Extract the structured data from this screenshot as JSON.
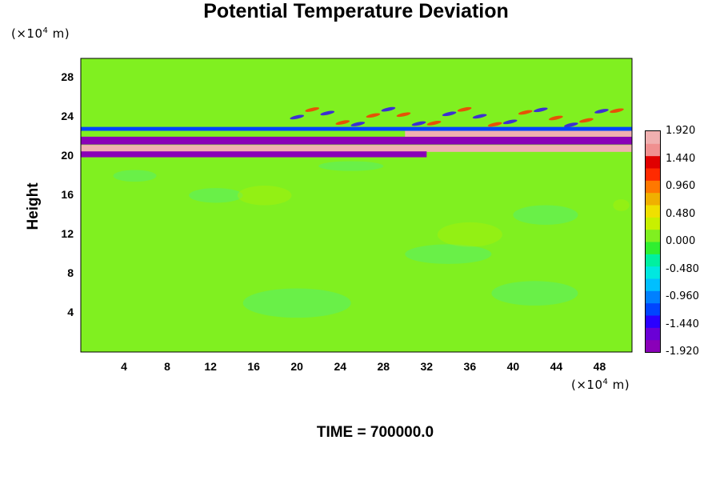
{
  "chart_data": {
    "type": "heatmap",
    "title": "Potential Temperature Deviation",
    "ylabel": "Height",
    "y_unit": "(×10",
    "x_unit": "(×10",
    "unit_exponent": "4",
    "unit_suffix": " m)",
    "x_ticks": [
      "4",
      "8",
      "12",
      "16",
      "20",
      "24",
      "28",
      "32",
      "36",
      "40",
      "44",
      "48"
    ],
    "y_ticks": [
      "4",
      "8",
      "12",
      "16",
      "20",
      "24",
      "28"
    ],
    "xlim": [
      0,
      51
    ],
    "ylim": [
      0,
      30
    ],
    "colorbar_ticks": [
      "1.920",
      "1.440",
      "0.960",
      "0.480",
      "0.000",
      "-0.480",
      "-0.960",
      "-1.440",
      "-1.920"
    ],
    "colorbar_range": [
      -1.92,
      1.92
    ],
    "background_value": 0.12,
    "features": [
      {
        "label": "strong positive layer",
        "x_start": 0,
        "x_end": 51,
        "y": 20.8,
        "thickness": 0.7,
        "value": 1.95
      },
      {
        "label": "strong negative layer upper",
        "x_start": 0,
        "x_end": 51,
        "y": 21.6,
        "thickness": 0.8,
        "value": -1.92
      },
      {
        "label": "strong negative layer lower",
        "x_start": 0,
        "x_end": 32,
        "y": 20.2,
        "thickness": 0.6,
        "value": -1.92
      },
      {
        "label": "positive layer upper",
        "x_start": 30,
        "x_end": 51,
        "y": 22.3,
        "thickness": 0.6,
        "value": 1.95
      },
      {
        "label": "negative band top",
        "x_start": 0,
        "x_end": 51,
        "y": 22.8,
        "thickness": 0.4,
        "value": -1.2
      },
      {
        "label": "wave packet",
        "x_start": 20,
        "x_end": 51,
        "y": 24.0,
        "thickness": 1.6,
        "value": 1.2
      }
    ],
    "footer": "TIME = 700000.0"
  }
}
